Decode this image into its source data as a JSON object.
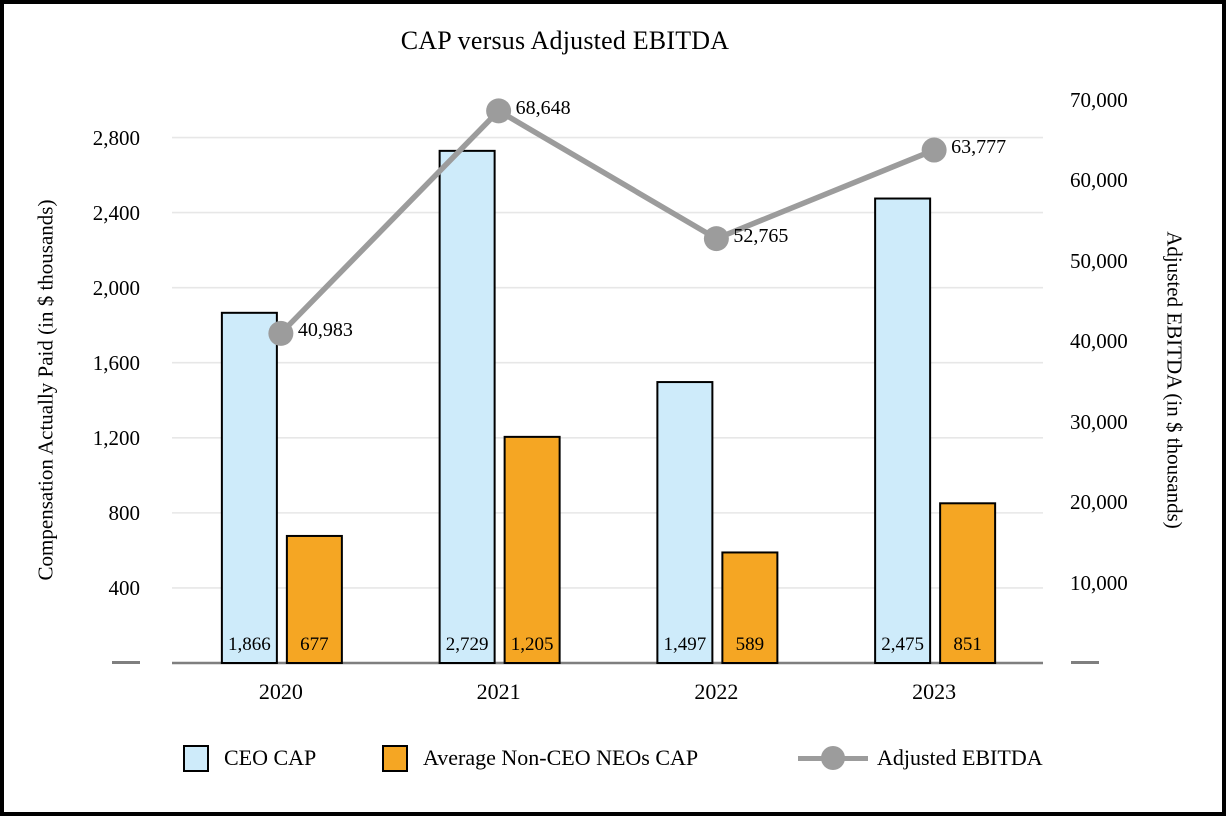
{
  "window": {
    "background": "#FFFFFF",
    "border_color": "#000000"
  },
  "chart_data": {
    "type": "combo-bar-line",
    "title": "CAP versus Adjusted EBITDA",
    "categories": [
      "2020",
      "2021",
      "2022",
      "2023"
    ],
    "series": [
      {
        "name": "CEO CAP",
        "chart_type": "bar",
        "axis": "left",
        "color": "#CEEBFA",
        "border_color": "#000000",
        "values": [
          1866,
          2729,
          1497,
          2475
        ],
        "value_labels": [
          "1,866",
          "2,729",
          "1,497",
          "2,475"
        ]
      },
      {
        "name": "Average Non-CEO NEOs CAP",
        "chart_type": "bar",
        "axis": "left",
        "color": "#F5A623",
        "border_color": "#000000",
        "values": [
          677,
          1205,
          589,
          851
        ],
        "value_labels": [
          "677",
          "1,205",
          "589",
          "851"
        ]
      },
      {
        "name": "Adjusted EBITDA",
        "chart_type": "line",
        "axis": "right",
        "color": "#9C9C9C",
        "values": [
          40983,
          68648,
          52765,
          63777
        ],
        "value_labels": [
          "40,983",
          "68,648",
          "52,765",
          "63,777"
        ]
      }
    ],
    "left_axis": {
      "title": "Compensation Actually Paid (in $ thousands)",
      "max": 3000,
      "major_unit": 400,
      "tick_values": [
        400,
        800,
        1200,
        1600,
        2000,
        2400,
        2800
      ],
      "tick_labels": [
        "400",
        "800",
        "1,200",
        "1,600",
        "2,000",
        "2,400",
        "2,800"
      ],
      "zero_label": "–"
    },
    "right_axis": {
      "title": "Adjusted EBITDA (in $ thousands)",
      "max": 70000,
      "major_unit": 10000,
      "tick_values": [
        10000,
        20000,
        30000,
        40000,
        50000,
        60000,
        70000
      ],
      "tick_labels": [
        "10,000",
        "20,000",
        "30,000",
        "40,000",
        "50,000",
        "60,000",
        "70,000"
      ],
      "zero_label": "–"
    },
    "gridlines": true,
    "legend_position": "bottom"
  },
  "legend": {
    "items": [
      {
        "label": "CEO CAP",
        "swatch": "bar"
      },
      {
        "label": "Average Non-CEO NEOs CAP",
        "swatch": "bar"
      },
      {
        "label": "Adjusted EBITDA",
        "swatch": "line-marker"
      }
    ]
  }
}
